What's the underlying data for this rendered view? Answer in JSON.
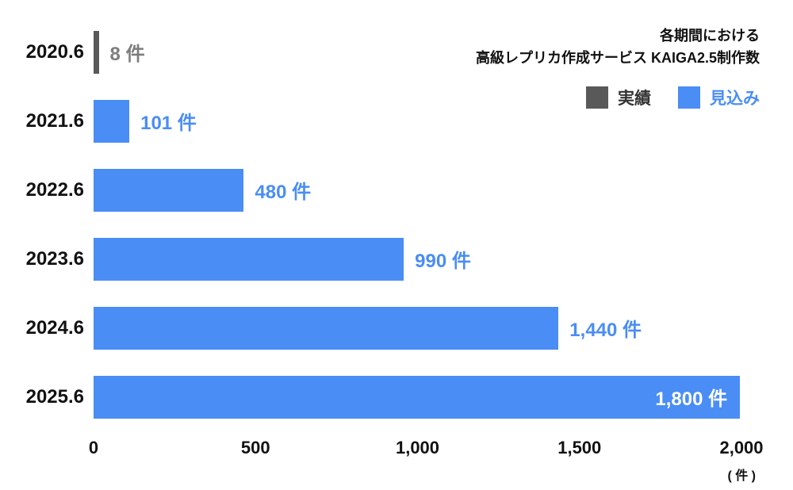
{
  "header": {
    "title_line1": "各期間における",
    "title_line2": "高級レプリカ作成サービス KAIGA2.5制作数"
  },
  "legend": {
    "actual_label": "実績",
    "forecast_label": "見込み"
  },
  "colors": {
    "actual": "#595959",
    "forecast": "#4a8df5",
    "actual_text": "#7d7d7d",
    "forecast_text": "#4a8df5",
    "inside_text": "#ffffff"
  },
  "bars": [
    {
      "category": "2020.6",
      "label": "8 件",
      "type": "actual",
      "display_pct": 0.8,
      "label_inside": false,
      "label_color": "#7d7d7d"
    },
    {
      "category": "2021.6",
      "label": "101 件",
      "type": "forecast",
      "display_pct": 5.5,
      "label_inside": false,
      "label_color": "#4a8df5"
    },
    {
      "category": "2022.6",
      "label": "480 件",
      "type": "forecast",
      "display_pct": 23.1,
      "label_inside": false,
      "label_color": "#4a8df5"
    },
    {
      "category": "2023.6",
      "label": "990 件",
      "type": "forecast",
      "display_pct": 47.7,
      "label_inside": false,
      "label_color": "#4a8df5"
    },
    {
      "category": "2024.6",
      "label": "1,440 件",
      "type": "forecast",
      "display_pct": 71.5,
      "label_inside": false,
      "label_color": "#4a8df5"
    },
    {
      "category": "2025.6",
      "label": "1,800 件",
      "type": "forecast",
      "display_pct": 99.4,
      "label_inside": true,
      "label_color": "#ffffff"
    }
  ],
  "x_axis": {
    "ticks": [
      "0",
      "500",
      "1,000",
      "1,500",
      "2,000"
    ],
    "tick_pcts": [
      0,
      25,
      50,
      75,
      100
    ],
    "unit": "( 件 )"
  },
  "chart_data": {
    "type": "bar",
    "orientation": "horizontal",
    "title": "各期間における 高級レプリカ作成サービス KAIGA2.5制作数",
    "categories": [
      "2020.6",
      "2021.6",
      "2022.6",
      "2023.6",
      "2024.6",
      "2025.6"
    ],
    "series": [
      {
        "name": "実績",
        "values": [
          8,
          null,
          null,
          null,
          null,
          null
        ]
      },
      {
        "name": "見込み",
        "values": [
          null,
          101,
          480,
          990,
          1440,
          1800
        ]
      }
    ],
    "value_labels": [
      "8 件",
      "101 件",
      "480 件",
      "990 件",
      "1,440 件",
      "1,800 件"
    ],
    "xlim": [
      0,
      2000
    ],
    "x_ticks": [
      0,
      500,
      1000,
      1500,
      2000
    ],
    "x_unit": "件",
    "legend_position": "top-right",
    "grid": false
  }
}
